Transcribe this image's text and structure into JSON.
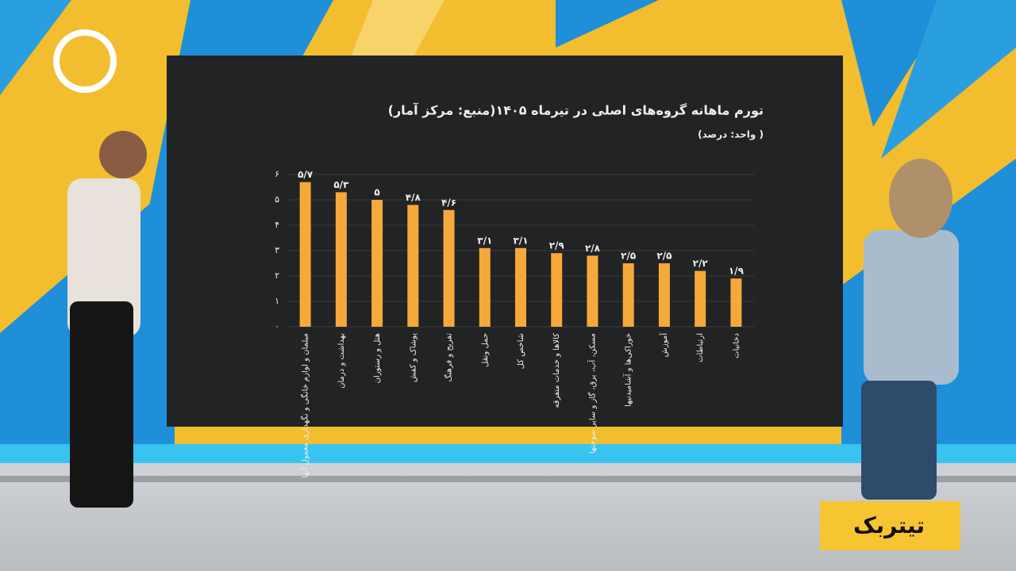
{
  "chart_data": {
    "type": "bar",
    "title": "تورم ماهانه گروه‌های اصلی در تیرماه ۱۴۰۵(منبع: مرکز آمار)",
    "subtitle": "(واحد: درصد )",
    "categories": [
      "مبلمان و لوازم خانگی و نگهداری معمول آنها",
      "بهداشت و درمان",
      "هتل و رستوران",
      "پوشاک و کفش",
      "تفریح و فرهنگ",
      "حمل ونقل",
      "شاخص کل",
      "کالاها و خدمات متفرقه",
      "مسکن، آب، برق، گاز و سایر سوختها",
      "خوراکی‌ها و آشامیدنیها",
      "آموزش",
      "ارتباطات",
      "دخانیات"
    ],
    "values": [
      5.7,
      5.3,
      5,
      4.8,
      4.6,
      3.1,
      3.1,
      2.9,
      2.8,
      2.5,
      2.5,
      2.2,
      1.9
    ],
    "value_labels": [
      "۵/۷",
      "۵/۳",
      "۵",
      "۴/۸",
      "۴/۶",
      "۳/۱",
      "۳/۱",
      "۲/۹",
      "۲/۸",
      "۲/۵",
      "۲/۵",
      "۲/۲",
      "۱/۹"
    ],
    "color": "#f6a93b",
    "ylim": [
      0,
      6
    ],
    "yticks": [
      {
        "value": 0,
        "label": "۰"
      },
      {
        "value": 1,
        "label": "۱"
      },
      {
        "value": 2,
        "label": "۲"
      },
      {
        "value": 3,
        "label": "۳"
      },
      {
        "value": 4,
        "label": "۴"
      },
      {
        "value": 5,
        "label": "۵"
      },
      {
        "value": 6,
        "label": "۶"
      }
    ],
    "grid": true
  },
  "brand": "تیتربک"
}
